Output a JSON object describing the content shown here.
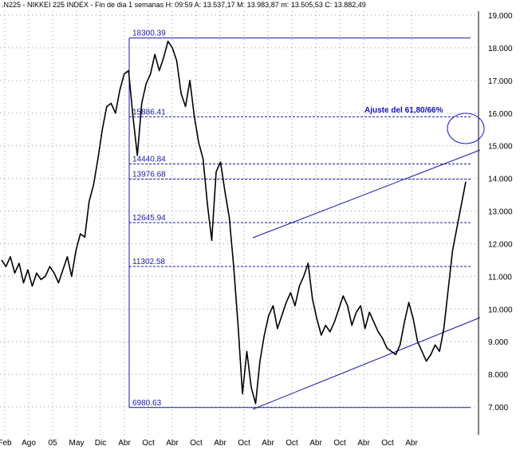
{
  "chart_data": {
    "type": "line",
    "title": ".N225 - NIKKEI 225 INDEX - Fin de dia 1 semanas H: 09:59  A: 13.537,17  M: 13.983,87  m: 13.505,53  C: 13.882,49",
    "ylim": [
      7000,
      19000
    ],
    "y_ticks": [
      "7.000",
      "8.000",
      "9.000",
      "10.000",
      "11.000",
      "12.000",
      "13.000",
      "14.000",
      "15.000",
      "16.000",
      "17.000",
      "18.000",
      "19.000"
    ],
    "x_ticks": [
      "Feb",
      "Ago",
      "05",
      "May",
      "Dic",
      "Abr",
      "Oct",
      "Abr",
      "Oct",
      "Abr",
      "Oct",
      "Abr",
      "Oct",
      "Abr",
      "Oct",
      "Abr",
      "Oct",
      "Abr"
    ],
    "grid": true,
    "fib_levels": [
      {
        "label": "18300.39",
        "value": 18300.39
      },
      {
        "label": "15886.41",
        "value": 15886.41
      },
      {
        "label": "14440.84",
        "value": 14440.84
      },
      {
        "label": "13976.68",
        "value": 13976.68
      },
      {
        "label": "12645.94",
        "value": 12645.94
      },
      {
        "label": "11302.58",
        "value": 11302.58
      },
      {
        "label": "6980.63",
        "value": 6980.63
      }
    ],
    "annotation": "Ajuste del 61,80/66%",
    "series": [
      {
        "values": [
          11500,
          11300,
          11600,
          11100,
          11400,
          10800,
          11200,
          10700,
          11100,
          10900,
          11000,
          11300,
          11100,
          10800,
          11200,
          11600,
          11000,
          11800,
          12300,
          12200,
          13300,
          13800,
          14600,
          15500,
          16200,
          16300,
          16000,
          16700,
          17200,
          17300,
          15900,
          14700,
          16300,
          16900,
          17200,
          17800,
          17300,
          17700,
          18200,
          18000,
          17600,
          16600,
          16200,
          17000,
          15900,
          15100,
          14600,
          13200,
          12100,
          14200,
          14500,
          13600,
          12800,
          11300,
          9500,
          7400,
          8700,
          7600,
          7100,
          8400,
          9200,
          9800,
          10100,
          9400,
          9800,
          10200,
          10500,
          10100,
          10700,
          11000,
          11400,
          10300,
          9700,
          9200,
          9500,
          9300,
          9600,
          10000,
          10400,
          10100,
          9500,
          9900,
          10100,
          9400,
          9900,
          9600,
          9300,
          9100,
          8800,
          8700,
          8600,
          8900,
          9600,
          10200,
          9700,
          9000,
          8700,
          8400,
          8600,
          8900,
          8700,
          9400,
          10600,
          11800,
          12500,
          13200,
          13900
        ]
      }
    ]
  }
}
